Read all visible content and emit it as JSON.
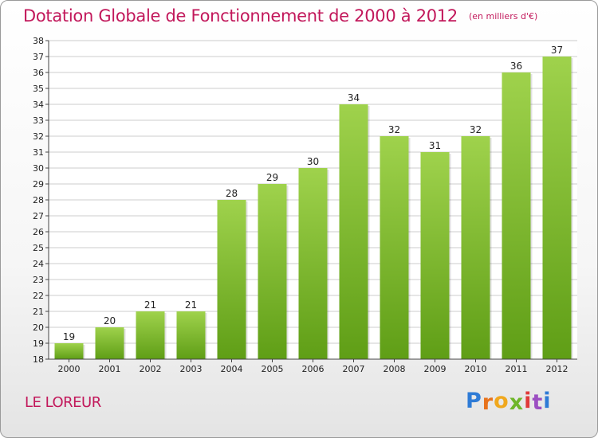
{
  "header": {
    "title": "Dotation Globale de Fonctionnement de 2000 à 2012",
    "subtitle": "(en milliers d'€)"
  },
  "footer": {
    "commune": "LE LOREUR",
    "logo": [
      "P",
      "r",
      "o",
      "x",
      "i",
      "t",
      "i"
    ]
  },
  "colors": {
    "title": "#c2185b",
    "bar_light": "#9fd24c",
    "bar_dark": "#5f9e16",
    "logo_letters": [
      "#2e7bd6",
      "#e8731c",
      "#f0a81e",
      "#6fb62a",
      "#e03a3a",
      "#9c4fc2",
      "#2e7bd6"
    ]
  },
  "chart_data": {
    "type": "bar",
    "title": "Dotation Globale de Fonctionnement de 2000 à 2012",
    "subtitle": "(en milliers d'€)",
    "categories": [
      "2000",
      "2001",
      "2002",
      "2003",
      "2004",
      "2005",
      "2006",
      "2007",
      "2008",
      "2009",
      "2010",
      "2011",
      "2012"
    ],
    "values": [
      19,
      20,
      21,
      21,
      28,
      29,
      30,
      34,
      32,
      31,
      32,
      36,
      37
    ],
    "ylim": [
      18,
      38
    ],
    "yticks": [
      18,
      19,
      20,
      21,
      22,
      23,
      24,
      25,
      26,
      27,
      28,
      29,
      30,
      31,
      32,
      33,
      34,
      35,
      36,
      37,
      38
    ],
    "grid": true,
    "data_labels": true
  }
}
